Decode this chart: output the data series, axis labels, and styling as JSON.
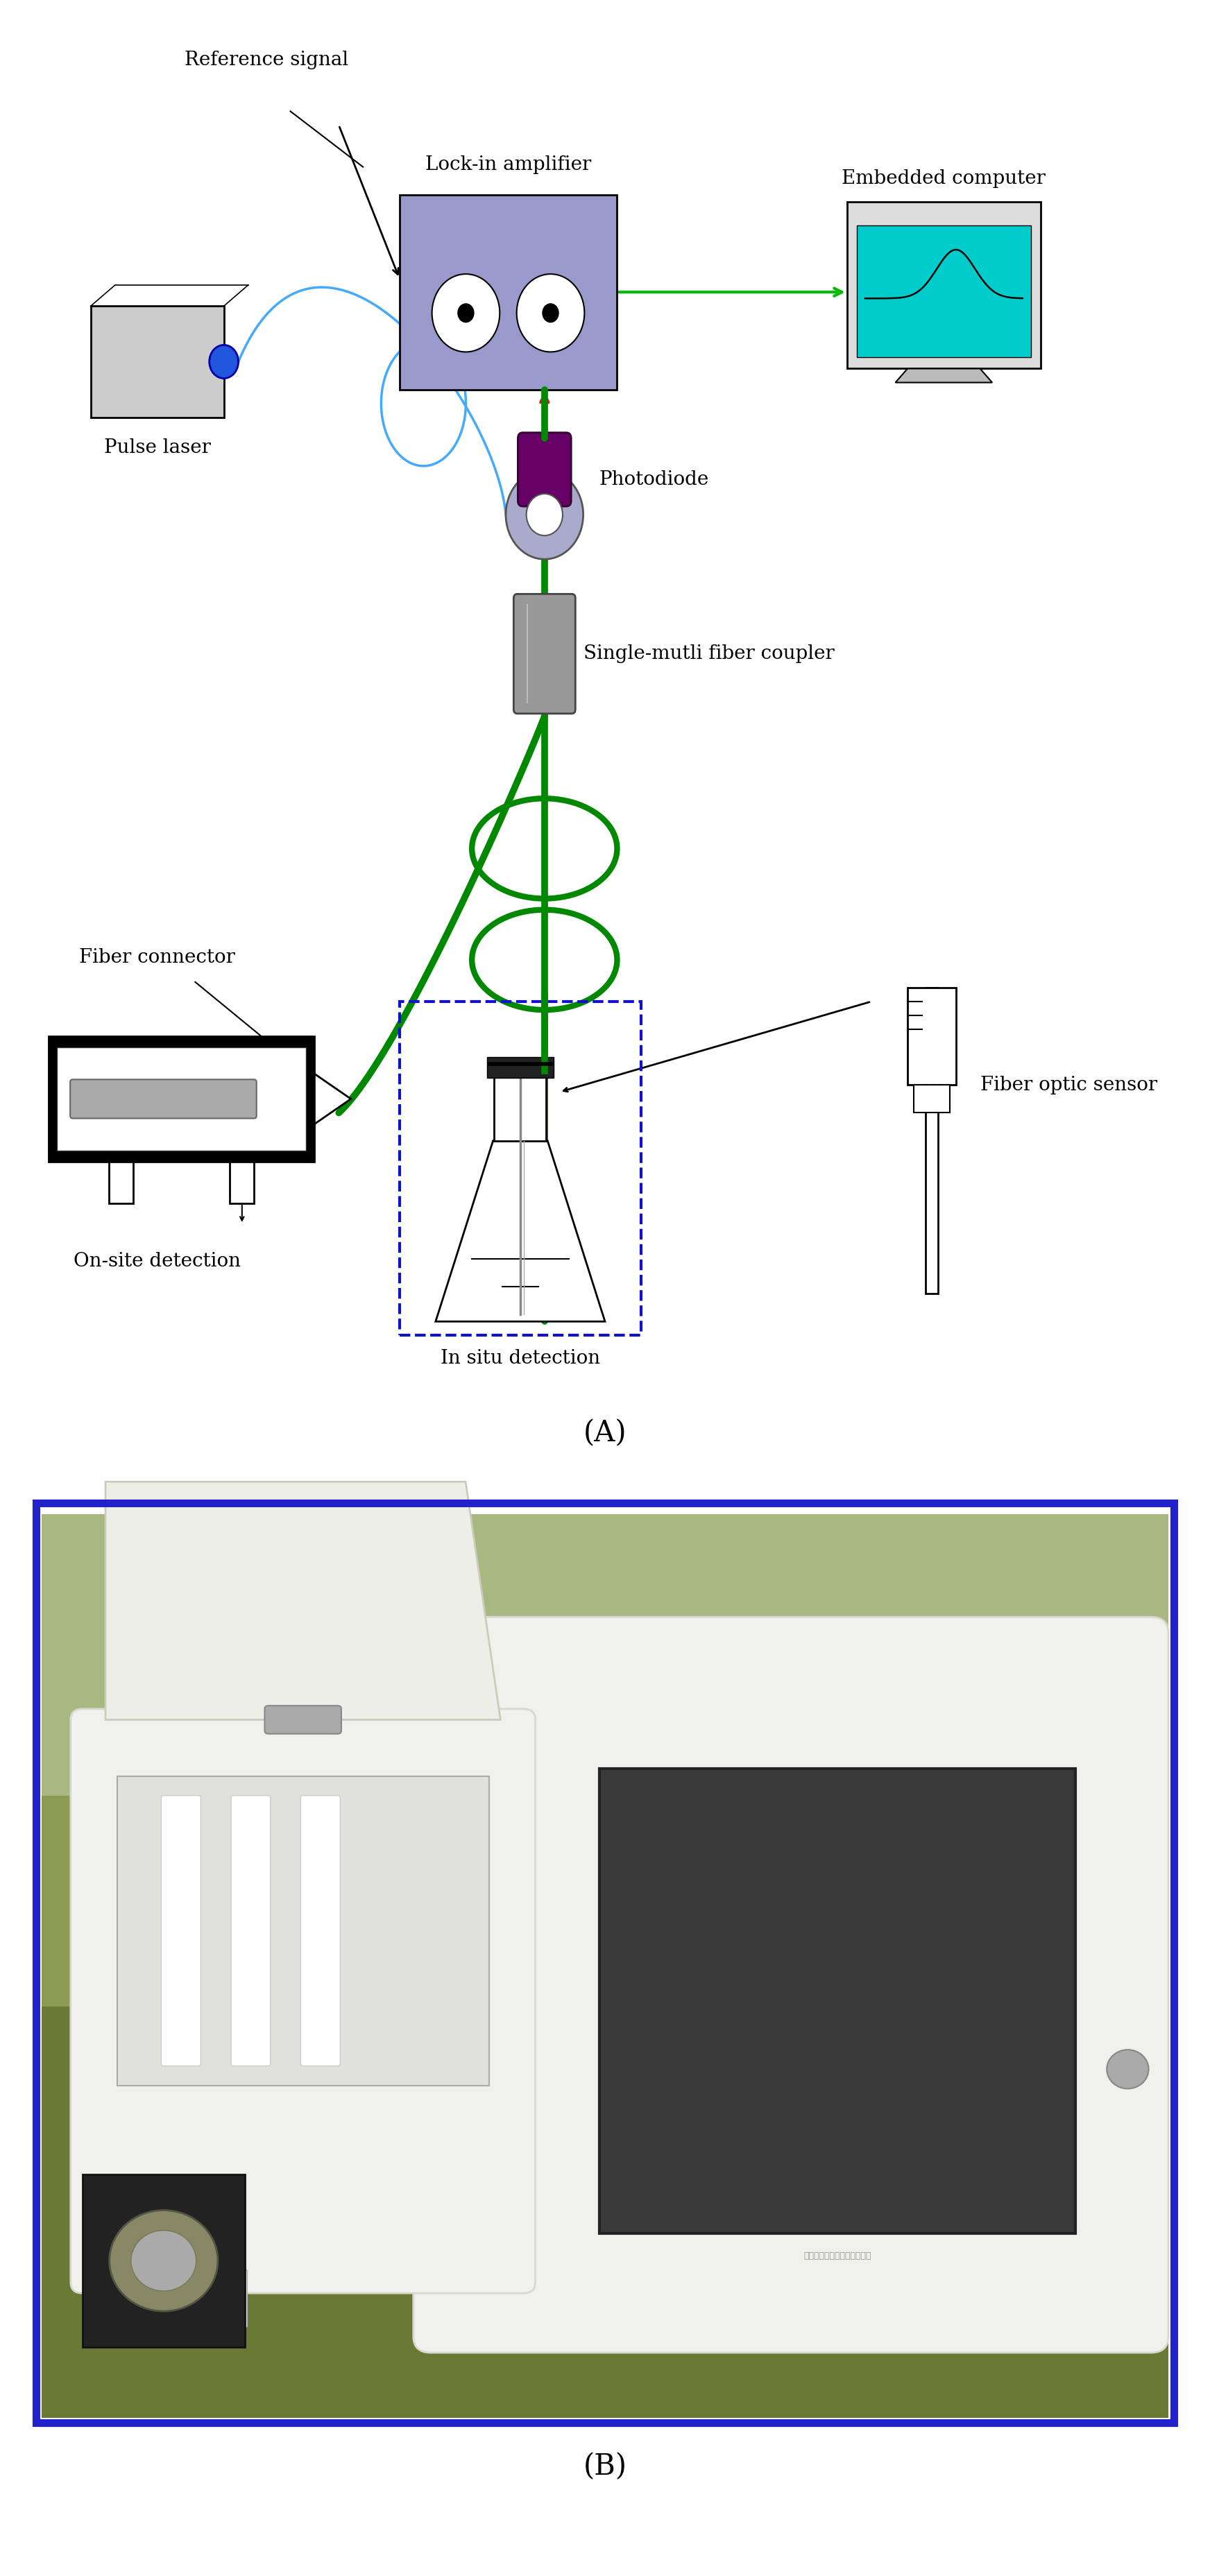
{
  "fig_width": 17.44,
  "fig_height": 37.14,
  "bg_color": "#ffffff",
  "label_A": "(A)",
  "label_B": "(B)",
  "text_labels": {
    "reference_signal": "Reference signal",
    "lock_in_amplifier": "Lock-in amplifier",
    "embedded_computer": "Embedded computer",
    "pulse_laser": "Pulse laser",
    "photodiode": "Photodiode",
    "single_multi_fiber_coupler": "Single-mutli fiber coupler",
    "fiber_connector": "Fiber connector",
    "on_site_detection": "On-site detection",
    "in_situ_detection": "In situ detection",
    "fiber_optic_sensor": "Fiber optic sensor",
    "chinese_text": "便携式环境污染重金属分析仪"
  },
  "colors": {
    "green_fiber": "#008800",
    "blue_fiber": "#44aaff",
    "red_arrow": "#ff0000",
    "green_arrow": "#00bb00",
    "lock_in_box": "#9999cc",
    "computer_screen": "#00cccc",
    "photodiode_purple": "#660066",
    "lens_color": "#aaaacc",
    "coupler_color": "#999999",
    "dashed_box_color": "#1111cc",
    "photo_border": "#2222cc",
    "grass_dark": "#556633",
    "grass_mid": "#6a7a40",
    "grass_light": "#8a9450",
    "instrument_white": "#f2f2ee",
    "screen_dark": "#444444",
    "black_module": "#222222"
  },
  "font_sizes": {
    "text": 20,
    "panel_label": 30
  }
}
